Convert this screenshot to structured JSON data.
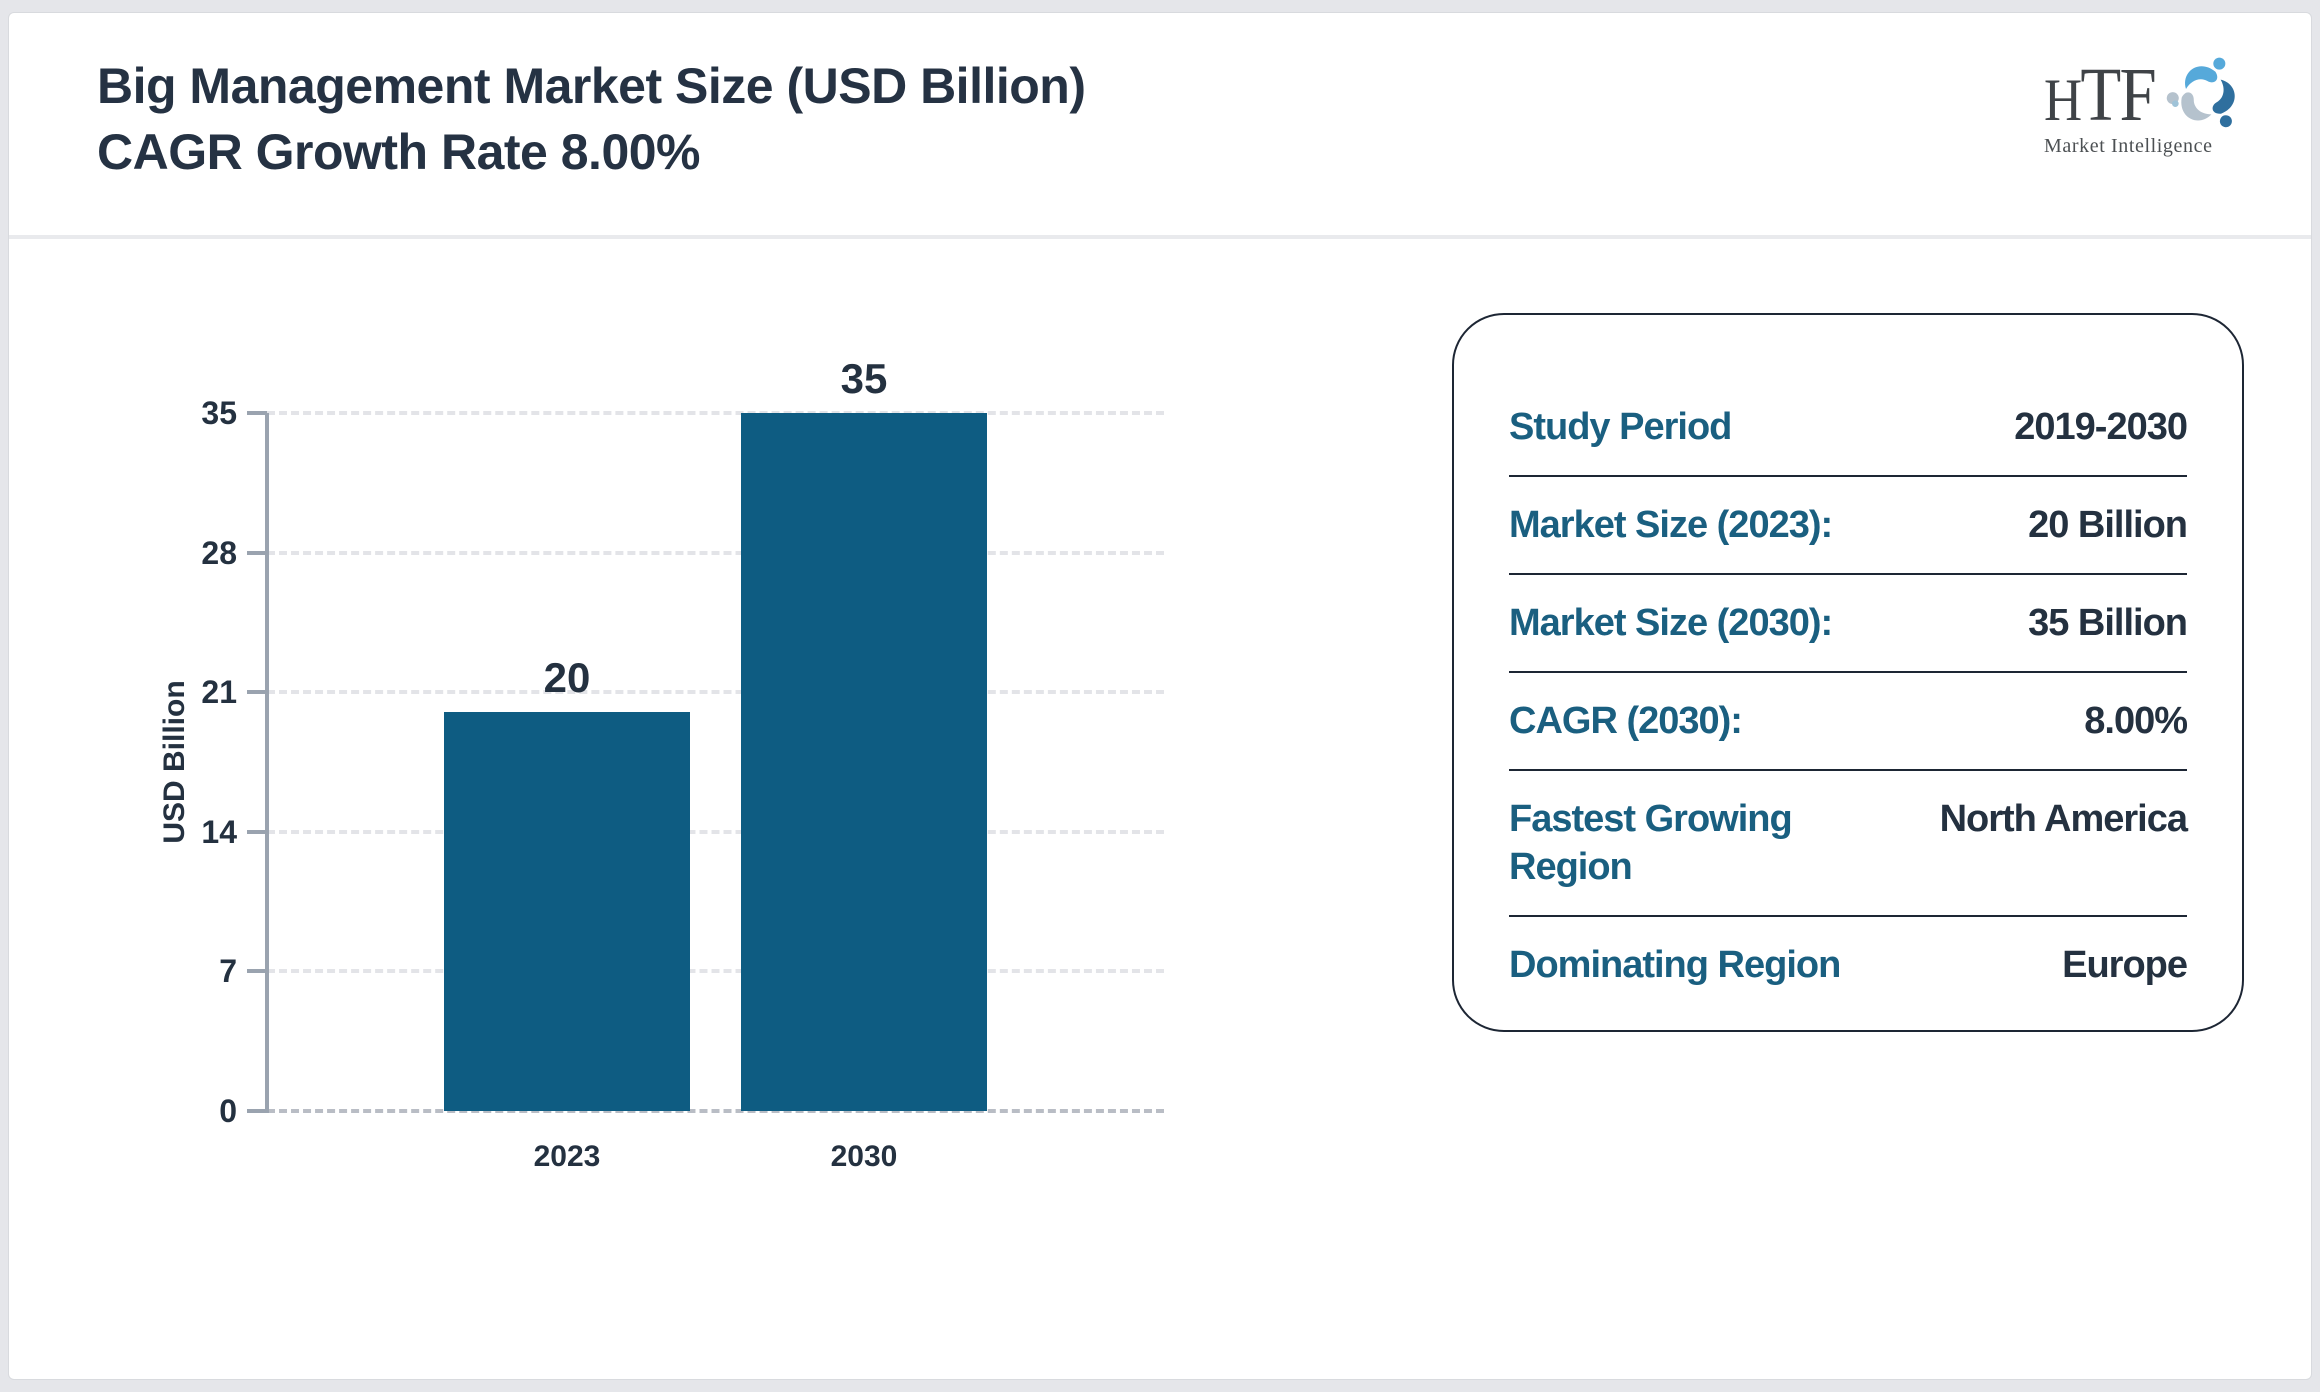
{
  "header": {
    "title_line1": "Big Management Market Size (USD Billion)",
    "title_line2": "CAGR Growth Rate 8.00%"
  },
  "logo": {
    "letters": "HTF",
    "letter_h": "H",
    "letter_t": "T",
    "letter_f": "F",
    "subtext": "Market Intelligence",
    "colors": {
      "text": "#3f4347",
      "light_blue": "#56a9da",
      "steel_blue": "#2f6f9e",
      "gray_blue": "#b5c2cd"
    }
  },
  "chart_data": {
    "type": "bar",
    "categories": [
      "2023",
      "2030"
    ],
    "values": [
      20,
      35
    ],
    "value_labels": [
      "20",
      "35"
    ],
    "title": "Big Management Market Size (USD Billion) CAGR Growth Rate 8.00%",
    "xlabel": "",
    "ylabel": "USD Billion",
    "yticks": [
      0,
      7,
      14,
      21,
      28,
      35
    ],
    "ylim": [
      0,
      35
    ],
    "grid": "horizontal-dashed",
    "legend": "none",
    "bar_color": "#0e5c82",
    "axis_color": "#9aa3af",
    "grid_color": "#e3e4e8",
    "label_color": "#243140"
  },
  "info_panel": {
    "label_color": "#1a5f80",
    "value_color": "#243140",
    "rows": [
      {
        "label": "Study Period",
        "value": "2019-2030"
      },
      {
        "label": "Market Size (2023):",
        "value": "20 Billion"
      },
      {
        "label": "Market Size (2030):",
        "value": "35 Billion"
      },
      {
        "label": "CAGR (2030):",
        "value": "8.00%"
      },
      {
        "label": "Fastest Growing Region",
        "value": "North America"
      },
      {
        "label": "Dominating Region",
        "value": "Europe"
      }
    ]
  }
}
